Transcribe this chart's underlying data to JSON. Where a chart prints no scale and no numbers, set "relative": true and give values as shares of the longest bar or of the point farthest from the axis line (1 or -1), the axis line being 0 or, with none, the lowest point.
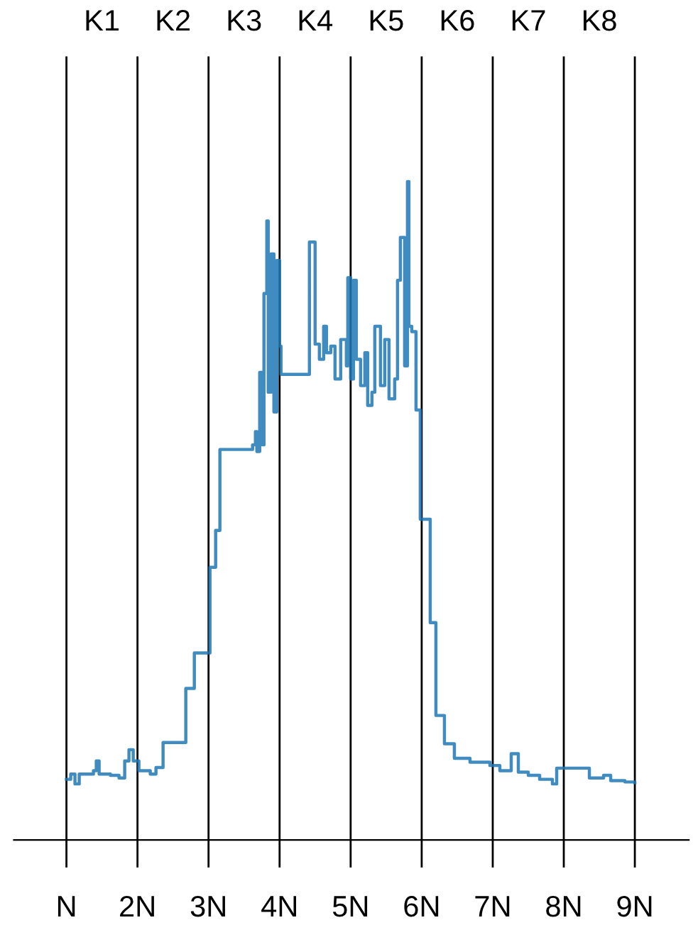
{
  "chart_data": {
    "type": "step",
    "relative": true,
    "grid": "x",
    "xlim": [
      0.26,
      9.76
    ],
    "xticks": [
      {
        "value": 1,
        "label": "N"
      },
      {
        "value": 2,
        "label": "2N"
      },
      {
        "value": 3,
        "label": "3N"
      },
      {
        "value": 4,
        "label": "4N"
      },
      {
        "value": 5,
        "label": "5N"
      },
      {
        "value": 6,
        "label": "6N"
      },
      {
        "value": 7,
        "label": "7N"
      },
      {
        "value": 8,
        "label": "8N"
      },
      {
        "value": 9,
        "label": "9N"
      }
    ],
    "annotations": [
      "K1",
      "K2",
      "K3",
      "K4",
      "K5",
      "K6",
      "K7",
      "K8"
    ],
    "series": [
      {
        "color": "#1f77b4",
        "x": [
          1.0,
          1.06,
          1.12,
          1.18,
          1.38,
          1.42,
          1.46,
          1.62,
          1.74,
          1.82,
          1.88,
          1.94,
          2.02,
          2.18,
          2.26,
          2.36,
          2.68,
          2.8,
          3.02,
          3.1,
          3.16,
          3.62,
          3.66,
          3.68,
          3.72,
          3.76,
          3.78,
          3.82,
          3.84,
          3.88,
          3.92,
          3.96,
          4.0,
          4.02,
          4.42,
          4.5,
          4.56,
          4.62,
          4.66,
          4.72,
          4.78,
          4.86,
          4.94,
          4.96,
          5.0,
          5.04,
          5.08,
          5.14,
          5.2,
          5.24,
          5.3,
          5.34,
          5.42,
          5.48,
          5.54,
          5.62,
          5.66,
          5.7,
          5.76,
          5.8,
          5.82,
          5.86,
          5.92,
          5.98,
          6.12,
          6.2,
          6.32,
          6.46,
          6.68,
          6.96,
          7.1,
          7.26,
          7.36,
          7.5,
          7.66,
          7.84,
          7.9,
          8.36,
          8.56,
          8.66,
          8.86,
          9.0
        ],
        "values": [
          0.092,
          0.1,
          0.085,
          0.1,
          0.105,
          0.12,
          0.1,
          0.098,
          0.094,
          0.12,
          0.137,
          0.12,
          0.105,
          0.1,
          0.11,
          0.148,
          0.23,
          0.284,
          0.414,
          0.47,
          0.593,
          0.6,
          0.62,
          0.59,
          0.71,
          0.6,
          0.83,
          0.94,
          0.68,
          0.89,
          0.65,
          0.88,
          0.75,
          0.707,
          0.908,
          0.753,
          0.73,
          0.78,
          0.74,
          0.75,
          0.7,
          0.76,
          0.72,
          0.854,
          0.7,
          0.85,
          0.73,
          0.69,
          0.74,
          0.66,
          0.68,
          0.78,
          0.69,
          0.76,
          0.67,
          0.7,
          0.85,
          0.915,
          0.72,
          1.0,
          0.78,
          0.772,
          0.653,
          0.487,
          0.33,
          0.189,
          0.146,
          0.124,
          0.118,
          0.113,
          0.105,
          0.131,
          0.103,
          0.098,
          0.092,
          0.085,
          0.109,
          0.094,
          0.098,
          0.09,
          0.088,
          0.087
        ]
      }
    ]
  }
}
